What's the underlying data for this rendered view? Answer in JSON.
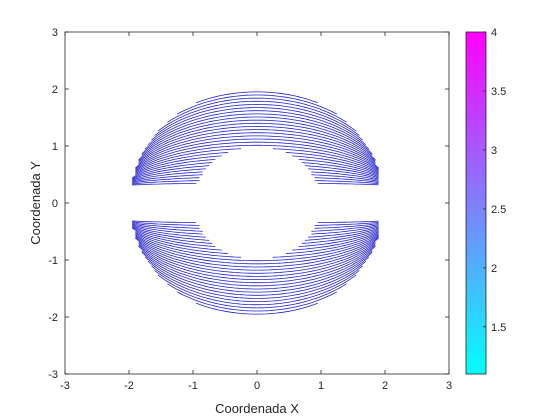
{
  "chart_data": {
    "type": "contour",
    "xlabel": "Coordenada X",
    "ylabel": "Coordenada Y",
    "xlim": [
      -3,
      3
    ],
    "ylim": [
      -3,
      3
    ],
    "xticks": [
      "-3",
      "-2",
      "-1",
      "0",
      "1",
      "2",
      "3"
    ],
    "yticks": [
      "-3",
      "-2",
      "-1",
      "0",
      "1",
      "2",
      "3"
    ],
    "grid": false,
    "line_color": "#2222cc",
    "contours": {
      "region": "annulus split by horizontal gap",
      "inner_radius": 1.0,
      "outer_radius": 2.0,
      "x_range": [
        -2,
        2
      ],
      "gap_y": [
        -0.3,
        0.3
      ],
      "levels": 30
    },
    "colorbar": {
      "range": [
        1.1,
        4
      ],
      "ticks": [
        "1.5",
        "2",
        "2.5",
        "3",
        "3.5",
        "4"
      ],
      "color_low": "#00ffff",
      "color_high": "#ff00ff"
    }
  }
}
